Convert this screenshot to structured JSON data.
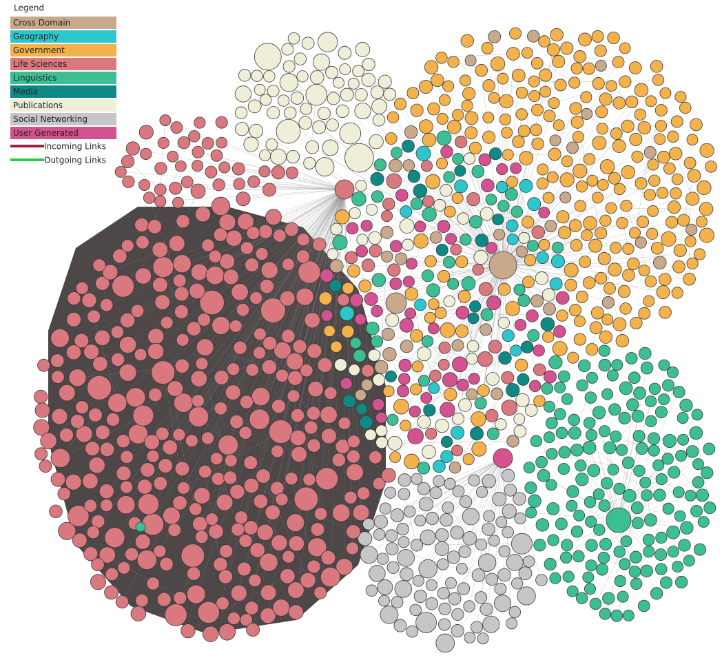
{
  "legend": {
    "title": "Legend",
    "items": [
      {
        "label": "Cross Domain",
        "color": "#c8a98c"
      },
      {
        "label": "Geography",
        "color": "#2cc6cc"
      },
      {
        "label": "Government",
        "color": "#f4b24c"
      },
      {
        "label": "Life Sciences",
        "color": "#d9787f"
      },
      {
        "label": "Linguistics",
        "color": "#3cbf95"
      },
      {
        "label": "Media",
        "color": "#0e8a86"
      },
      {
        "label": "Publications",
        "color": "#efeed8"
      },
      {
        "label": "Social Networking",
        "color": "#c6c6c8"
      },
      {
        "label": "User Generated",
        "color": "#d4528f"
      }
    ],
    "links": [
      {
        "label": "Incoming Links",
        "color": "#a3203f"
      },
      {
        "label": "Outgoing Links",
        "color": "#2ecc40"
      }
    ]
  }
}
